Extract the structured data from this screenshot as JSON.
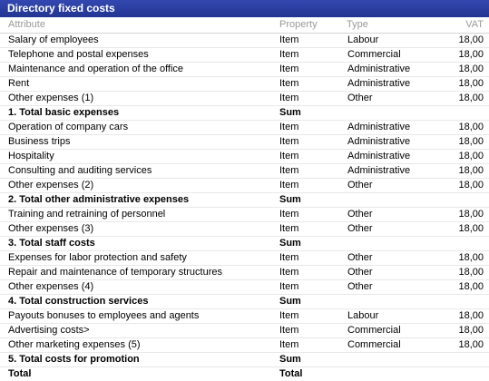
{
  "window": {
    "title": "Directory fixed costs"
  },
  "columns": {
    "attribute": "Attribute",
    "property": "Property",
    "type": "Type",
    "vat": "VAT"
  },
  "rows": [
    {
      "attribute": "Salary of employees",
      "property": "Item",
      "type": "Labour",
      "vat": "18,00"
    },
    {
      "attribute": "Telephone and postal expenses",
      "property": "Item",
      "type": "Commercial",
      "vat": "18,00"
    },
    {
      "attribute": "Maintenance and operation of the office",
      "property": "Item",
      "type": "Administrative",
      "vat": "18,00"
    },
    {
      "attribute": "Rent",
      "property": "Item",
      "type": "Administrative",
      "vat": "18,00"
    },
    {
      "attribute": "Other expenses (1)",
      "property": "Item",
      "type": "Other",
      "vat": "18,00"
    },
    {
      "attribute": "1. Total basic expenses",
      "property": "Sum",
      "type": "",
      "vat": "",
      "bold": true
    },
    {
      "attribute": "Operation of company cars",
      "property": "Item",
      "type": "Administrative",
      "vat": "18,00"
    },
    {
      "attribute": "Business trips",
      "property": "Item",
      "type": "Administrative",
      "vat": "18,00"
    },
    {
      "attribute": "Hospitality",
      "property": "Item",
      "type": "Administrative",
      "vat": "18,00"
    },
    {
      "attribute": "Consulting and auditing services",
      "property": "Item",
      "type": "Administrative",
      "vat": "18,00"
    },
    {
      "attribute": "Other expenses (2)",
      "property": "Item",
      "type": "Other",
      "vat": "18,00"
    },
    {
      "attribute": "2. Total other administrative expenses",
      "property": "Sum",
      "type": "",
      "vat": "",
      "bold": true
    },
    {
      "attribute": "Training and retraining of personnel",
      "property": "Item",
      "type": "Other",
      "vat": "18,00"
    },
    {
      "attribute": "Other expenses (3)",
      "property": "Item",
      "type": "Other",
      "vat": "18,00"
    },
    {
      "attribute": "3. Total staff costs",
      "property": "Sum",
      "type": "",
      "vat": "",
      "bold": true
    },
    {
      "attribute": "Expenses for labor protection and safety",
      "property": "Item",
      "type": "Other",
      "vat": "18,00"
    },
    {
      "attribute": "Repair and maintenance of temporary structures",
      "property": "Item",
      "type": "Other",
      "vat": "18,00"
    },
    {
      "attribute": "Other expenses (4)",
      "property": "Item",
      "type": "Other",
      "vat": "18,00"
    },
    {
      "attribute": "4. Total construction services",
      "property": "Sum",
      "type": "",
      "vat": "",
      "bold": true
    },
    {
      "attribute": "Payouts bonuses to employees and agents",
      "property": "Item",
      "type": "Labour",
      "vat": "18,00"
    },
    {
      "attribute": "Advertising costs>",
      "property": "Item",
      "type": "Commercial",
      "vat": "18,00"
    },
    {
      "attribute": "Other marketing expenses (5)",
      "property": "Item",
      "type": "Commercial",
      "vat": "18,00"
    },
    {
      "attribute": "5. Total costs for promotion",
      "property": "Sum",
      "type": "",
      "vat": "",
      "bold": true
    },
    {
      "attribute": "Total",
      "property": "Total",
      "type": "",
      "vat": "",
      "bold": true
    }
  ]
}
